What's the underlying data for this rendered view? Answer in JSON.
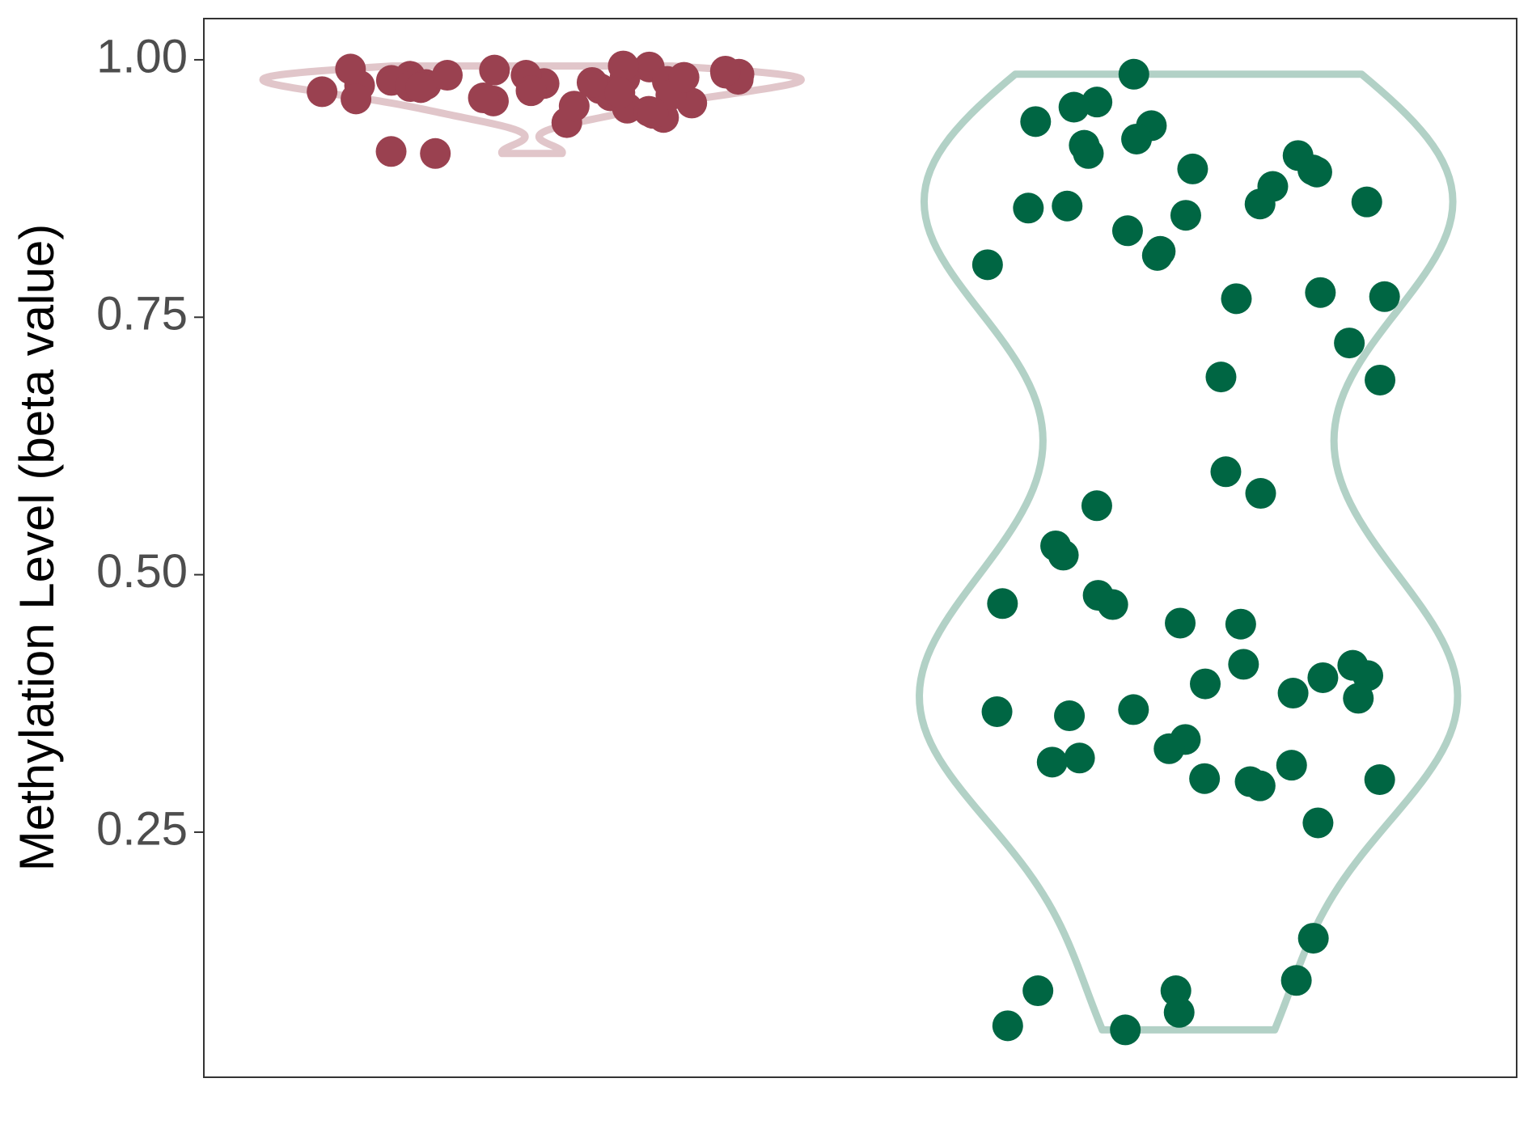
{
  "chart_data": {
    "type": "violin",
    "y_label": "Methylation Level (beta value)",
    "categories": [
      null,
      null
    ],
    "ylim": [
      0.012,
      1.04
    ],
    "yticks": [
      {
        "value": 0.25,
        "label": "0.25"
      },
      {
        "value": 0.5,
        "label": "0.50"
      },
      {
        "value": 0.75,
        "label": "0.75"
      },
      {
        "value": 1,
        "label": "1.00"
      }
    ],
    "series": [
      {
        "color": "#9a4150",
        "values": [
          0.987,
          0.977,
          0.993,
          0.965,
          0.953,
          0.944,
          0.939,
          0.911,
          0.909,
          0.985,
          0.99,
          0.975,
          0.97,
          0.96,
          0.982,
          0.988,
          0.994,
          0.979,
          0.972,
          0.958,
          0.95,
          0.966,
          0.984,
          0.991,
          0.98,
          0.976,
          0.969,
          0.962,
          0.974,
          0.986,
          0.983,
          0.978,
          0.968,
          0.955,
          0.948,
          0.981,
          0.989,
          0.973,
          0.963,
          0.985
        ]
      },
      {
        "color": "#006643",
        "values": [
          0.986,
          0.959,
          0.954,
          0.94,
          0.936,
          0.923,
          0.917,
          0.909,
          0.907,
          0.894,
          0.893,
          0.891,
          0.877,
          0.862,
          0.86,
          0.858,
          0.856,
          0.849,
          0.834,
          0.814,
          0.81,
          0.801,
          0.774,
          0.77,
          0.768,
          0.725,
          0.692,
          0.689,
          0.6,
          0.579,
          0.567,
          0.528,
          0.519,
          0.48,
          0.472,
          0.471,
          0.453,
          0.452,
          0.413,
          0.412,
          0.402,
          0.4,
          0.394,
          0.385,
          0.38,
          0.369,
          0.367,
          0.363,
          0.34,
          0.331,
          0.322,
          0.318,
          0.315,
          0.302,
          0.301,
          0.299,
          0.295,
          0.259,
          0.147,
          0.106,
          0.096,
          0.096,
          0.075,
          0.062,
          0.058
        ]
      }
    ]
  }
}
